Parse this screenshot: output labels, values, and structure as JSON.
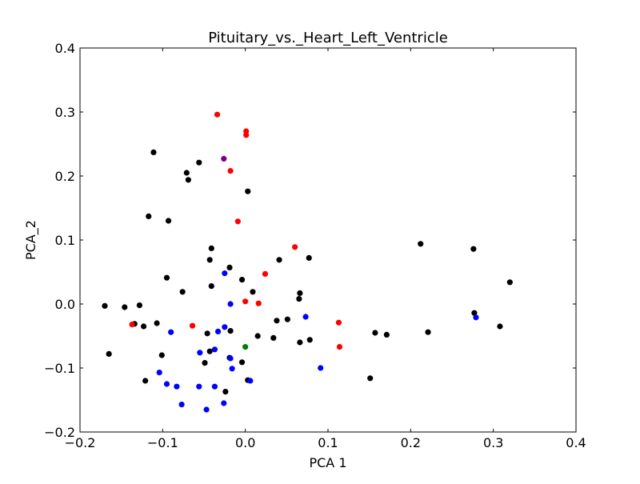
{
  "chart_data": {
    "type": "scatter",
    "title": "Pituitary_vs._Heart_Left_Ventricle",
    "xlabel": "PCA 1",
    "ylabel": "PCA_2",
    "xlim": [
      -0.2,
      0.4
    ],
    "ylim": [
      -0.2,
      0.4
    ],
    "xticks": [
      "−0.2",
      "−0.1",
      "0.0",
      "0.1",
      "0.2",
      "0.3",
      "0.4"
    ],
    "yticks": [
      "−0.2",
      "−0.1",
      "0.0",
      "0.1",
      "0.2",
      "0.3",
      "0.4"
    ],
    "grid": false,
    "series": [
      {
        "color": "#000000",
        "points": [
          [
            -0.111,
            0.237
          ],
          [
            -0.071,
            0.205
          ],
          [
            -0.069,
            0.194
          ],
          [
            -0.056,
            0.221
          ],
          [
            0.003,
            0.176
          ],
          [
            -0.117,
            0.137
          ],
          [
            -0.093,
            0.13
          ],
          [
            0.212,
            0.094
          ],
          [
            0.276,
            0.086
          ],
          [
            -0.041,
            0.087
          ],
          [
            -0.043,
            0.069
          ],
          [
            0.041,
            0.069
          ],
          [
            0.077,
            0.072
          ],
          [
            -0.019,
            0.057
          ],
          [
            -0.095,
            0.041
          ],
          [
            -0.004,
            0.038
          ],
          [
            0.32,
            0.034
          ],
          [
            -0.041,
            0.028
          ],
          [
            -0.076,
            0.019
          ],
          [
            0.009,
            0.019
          ],
          [
            0.066,
            0.017
          ],
          [
            0.065,
            0.008
          ],
          [
            -0.17,
            -0.003
          ],
          [
            -0.146,
            -0.005
          ],
          [
            -0.128,
            -0.002
          ],
          [
            -0.134,
            -0.031
          ],
          [
            -0.123,
            -0.035
          ],
          [
            -0.107,
            -0.03
          ],
          [
            0.277,
            -0.014
          ],
          [
            0.038,
            -0.026
          ],
          [
            0.051,
            -0.024
          ],
          [
            0.157,
            -0.045
          ],
          [
            0.171,
            -0.048
          ],
          [
            0.221,
            -0.044
          ],
          [
            0.308,
            -0.035
          ],
          [
            -0.046,
            -0.046
          ],
          [
            -0.018,
            -0.042
          ],
          [
            0.015,
            -0.05
          ],
          [
            0.034,
            -0.053
          ],
          [
            0.066,
            -0.06
          ],
          [
            0.078,
            -0.056
          ],
          [
            -0.165,
            -0.078
          ],
          [
            -0.101,
            -0.08
          ],
          [
            -0.043,
            -0.074
          ],
          [
            -0.019,
            -0.084
          ],
          [
            -0.049,
            -0.092
          ],
          [
            -0.004,
            -0.091
          ],
          [
            0.151,
            -0.116
          ],
          [
            -0.121,
            -0.12
          ],
          [
            0.003,
            -0.119
          ],
          [
            -0.024,
            -0.137
          ]
        ]
      },
      {
        "color": "#ff0000",
        "points": [
          [
            -0.034,
            0.296
          ],
          [
            0.001,
            0.27
          ],
          [
            0.001,
            0.264
          ],
          [
            -0.018,
            0.208
          ],
          [
            -0.009,
            0.129
          ],
          [
            0.06,
            0.089
          ],
          [
            0.024,
            0.047
          ],
          [
            0.0,
            0.004
          ],
          [
            0.016,
            0.001
          ],
          [
            -0.137,
            -0.032
          ],
          [
            -0.064,
            -0.034
          ],
          [
            0.113,
            -0.029
          ],
          [
            0.114,
            -0.067
          ]
        ]
      },
      {
        "color": "#0000ff",
        "points": [
          [
            -0.025,
            0.048
          ],
          [
            -0.018,
            0.0
          ],
          [
            0.073,
            -0.02
          ],
          [
            0.279,
            -0.021
          ],
          [
            -0.09,
            -0.044
          ],
          [
            -0.033,
            -0.043
          ],
          [
            -0.055,
            -0.076
          ],
          [
            -0.037,
            -0.071
          ],
          [
            -0.018,
            -0.085
          ],
          [
            -0.016,
            -0.101
          ],
          [
            0.091,
            -0.1
          ],
          [
            -0.104,
            -0.107
          ],
          [
            -0.095,
            -0.125
          ],
          [
            -0.083,
            -0.129
          ],
          [
            -0.056,
            -0.129
          ],
          [
            -0.037,
            -0.129
          ],
          [
            -0.026,
            -0.155
          ],
          [
            -0.077,
            -0.157
          ],
          [
            -0.047,
            -0.165
          ],
          [
            -0.025,
            -0.036
          ],
          [
            0.006,
            -0.12
          ]
        ]
      },
      {
        "color": "#008000",
        "points": [
          [
            0.0,
            -0.067
          ]
        ]
      },
      {
        "color": "#800080",
        "points": [
          [
            -0.026,
            0.227
          ]
        ]
      }
    ]
  }
}
